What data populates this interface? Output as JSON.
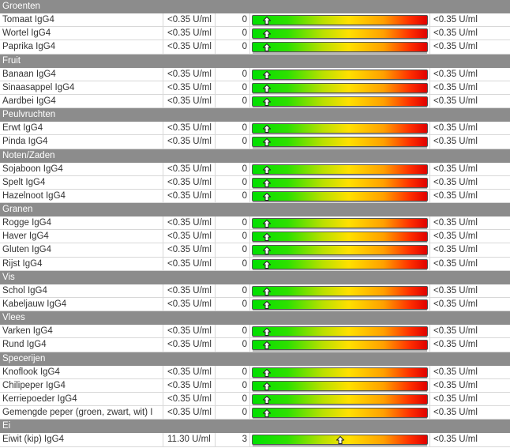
{
  "ref_text": "<0.35 U/ml",
  "groups": [
    {
      "title": "Groenten",
      "rows": [
        {
          "name": "Tomaat IgG4",
          "value": "<0.35 U/ml",
          "class": "0",
          "level": 0
        },
        {
          "name": "Wortel IgG4",
          "value": "<0.35 U/ml",
          "class": "0",
          "level": 0
        },
        {
          "name": "Paprika IgG4",
          "value": "<0.35 U/ml",
          "class": "0",
          "level": 0
        }
      ]
    },
    {
      "title": "Fruit",
      "rows": [
        {
          "name": "Banaan IgG4",
          "value": "<0.35 U/ml",
          "class": "0",
          "level": 0
        },
        {
          "name": "Sinaasappel IgG4",
          "value": "<0.35 U/ml",
          "class": "0",
          "level": 0
        },
        {
          "name": "Aardbei IgG4",
          "value": "<0.35 U/ml",
          "class": "0",
          "level": 0
        }
      ]
    },
    {
      "title": "Peulvruchten",
      "rows": [
        {
          "name": "Erwt IgG4",
          "value": "<0.35 U/ml",
          "class": "0",
          "level": 0
        },
        {
          "name": "Pinda IgG4",
          "value": "<0.35 U/ml",
          "class": "0",
          "level": 0
        }
      ]
    },
    {
      "title": "Noten/Zaden",
      "rows": [
        {
          "name": "Sojaboon IgG4",
          "value": "<0.35 U/ml",
          "class": "0",
          "level": 0
        },
        {
          "name": "Spelt IgG4",
          "value": "<0.35 U/ml",
          "class": "0",
          "level": 0
        },
        {
          "name": "Hazelnoot IgG4",
          "value": "<0.35 U/ml",
          "class": "0",
          "level": 0
        }
      ]
    },
    {
      "title": "Granen",
      "rows": [
        {
          "name": "Rogge IgG4",
          "value": "<0.35 U/ml",
          "class": "0",
          "level": 0
        },
        {
          "name": "Haver IgG4",
          "value": "<0.35 U/ml",
          "class": "0",
          "level": 0
        },
        {
          "name": "Gluten IgG4",
          "value": "<0.35 U/ml",
          "class": "0",
          "level": 0
        },
        {
          "name": "Rijst IgG4",
          "value": "<0.35 U/ml",
          "class": "0",
          "level": 0
        }
      ]
    },
    {
      "title": "Vis",
      "rows": [
        {
          "name": "Schol IgG4",
          "value": "<0.35 U/ml",
          "class": "0",
          "level": 0
        },
        {
          "name": "Kabeljauw IgG4",
          "value": "<0.35 U/ml",
          "class": "0",
          "level": 0
        }
      ]
    },
    {
      "title": "Vlees",
      "rows": [
        {
          "name": "Varken IgG4",
          "value": "<0.35 U/ml",
          "class": "0",
          "level": 0
        },
        {
          "name": "Rund IgG4",
          "value": "<0.35 U/ml",
          "class": "0",
          "level": 0
        }
      ]
    },
    {
      "title": "Specerijen",
      "rows": [
        {
          "name": "Knoflook IgG4",
          "value": "<0.35 U/ml",
          "class": "0",
          "level": 0
        },
        {
          "name": "Chilipeper IgG4",
          "value": "<0.35 U/ml",
          "class": "0",
          "level": 0
        },
        {
          "name": "Kerriepoeder IgG4",
          "value": "<0.35 U/ml",
          "class": "0",
          "level": 0
        },
        {
          "name": "Gemengde peper (groen, zwart, wit) I",
          "value": "<0.35 U/ml",
          "class": "0",
          "level": 0
        }
      ]
    },
    {
      "title": "Ei",
      "rows": [
        {
          "name": "Eiwit (kip) IgG4",
          "value": "11.30 U/ml",
          "class": "3",
          "level": 3
        }
      ]
    }
  ]
}
